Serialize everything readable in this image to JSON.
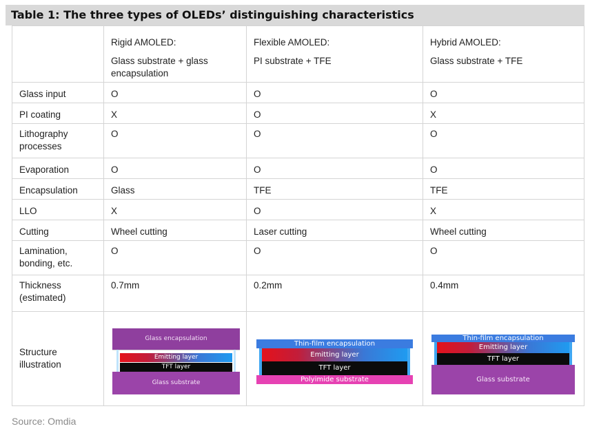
{
  "title": "Table 1: The three types of OLEDs’ distinguishing characteristics",
  "columns": [
    {
      "name": "Rigid AMOLED:",
      "desc": "Glass substrate + glass encapsulation"
    },
    {
      "name": "Flexible AMOLED:",
      "desc": "PI substrate + TFE"
    },
    {
      "name": "Hybrid AMOLED:",
      "desc": "Glass substrate + TFE"
    }
  ],
  "rows": [
    {
      "label": "Glass input",
      "values": [
        "O",
        "O",
        "O"
      ]
    },
    {
      "label": "PI coating",
      "values": [
        "X",
        "O",
        "X"
      ]
    },
    {
      "label": "Lithography processes",
      "values": [
        "O",
        "O",
        "O"
      ]
    },
    {
      "label": "Evaporation",
      "values": [
        "O",
        "O",
        "O"
      ]
    },
    {
      "label": "Encapsulation",
      "values": [
        "Glass",
        "TFE",
        "TFE"
      ]
    },
    {
      "label": "LLO",
      "values": [
        "X",
        "O",
        "X"
      ]
    },
    {
      "label": "Cutting",
      "values": [
        "Wheel cutting",
        "Laser cutting",
        "Wheel cutting"
      ]
    },
    {
      "label": "Lamination, bonding, etc.",
      "values": [
        "O",
        "O",
        "O"
      ]
    },
    {
      "label": "Thickness (estimated)",
      "values": [
        "0.7mm",
        "0.2mm",
        "0.4mm"
      ]
    }
  ],
  "structure": {
    "label": "Structure illustration",
    "rigid": {
      "glass_encapsulation": "Glass encapsulation",
      "emitting_layer": "Emitting layer",
      "tft_layer": "TFT layer",
      "glass_substrate": "Glass substrate"
    },
    "flexible": {
      "thin_film_encapsulation": "Thin-film encapsulation",
      "emitting_layer": "Emitting layer",
      "tft_layer": "TFT layer",
      "polyimide_substrate": "Polyimide substrate"
    },
    "hybrid": {
      "thin_film_encapsulation": "Thin-film encapsulation",
      "emitting_layer": "Emitting layer",
      "tft_layer": "TFT layer",
      "glass_substrate": "Glass substrate"
    }
  },
  "source": "Source: Omdia"
}
